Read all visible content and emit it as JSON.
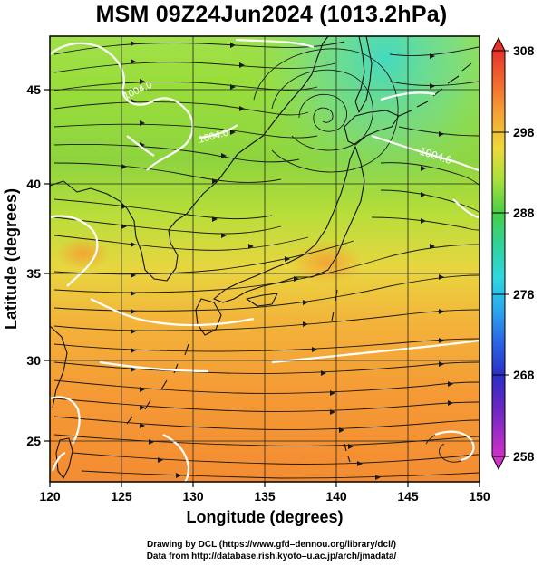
{
  "title": "MSM 09Z24Jun2024 (1013.2hPa)",
  "axes": {
    "xlabel": "Longitude (degrees)",
    "ylabel": "Latitude  (degrees)",
    "xticks": [
      "120",
      "125",
      "130",
      "135",
      "140",
      "145",
      "150"
    ],
    "yticks": [
      "25",
      "30",
      "35",
      "40",
      "45"
    ],
    "xlim": [
      120,
      150
    ],
    "ylim": [
      22.5,
      47.5
    ]
  },
  "colorbar": {
    "ticks": [
      "308",
      "298",
      "288",
      "278",
      "268",
      "258"
    ],
    "range": [
      258,
      308
    ]
  },
  "contour_labels": [
    "1004.0",
    "1004.0",
    "1004.0"
  ],
  "credits": {
    "line1": "Drawing by DCL (https://www.gfd–dennou.org/library/dcl/)",
    "line2": "Data from http://database.rish.kyoto–u.ac.jp/arch/jmadata/"
  },
  "chart_data": {
    "type": "heatmap",
    "title": "MSM 09Z24Jun2024 (1013.2hPa)",
    "xlabel": "Longitude (degrees)",
    "ylabel": "Latitude  (degrees)",
    "xlim": [
      120,
      150
    ],
    "ylim": [
      22.5,
      47.5
    ],
    "colorbar_range": [
      258,
      308
    ],
    "colorbar_ticks": [
      308,
      298,
      288,
      278,
      268,
      258
    ],
    "grid": true
  }
}
